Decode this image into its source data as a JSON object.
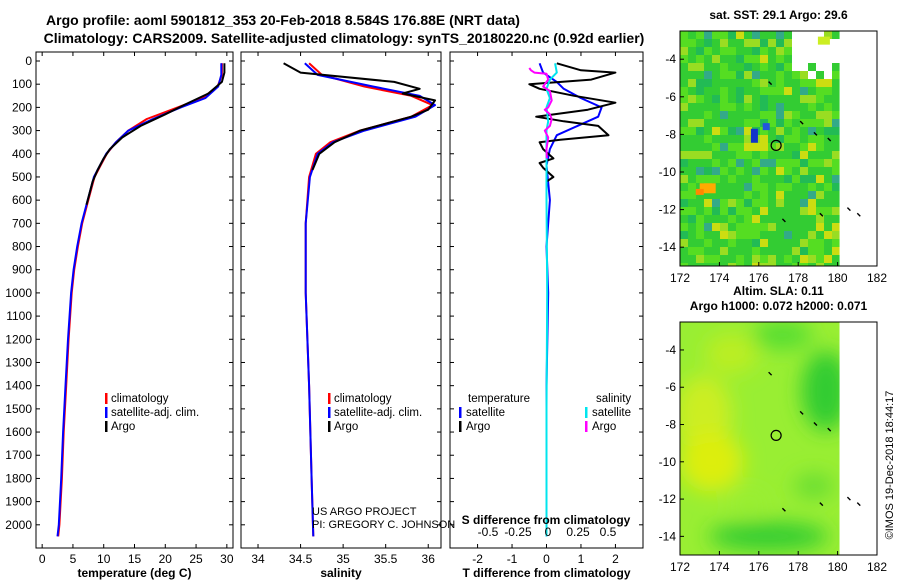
{
  "header": {
    "line1": "Argo profile: aoml 5901812_353 20-Feb-2018 8.584S 176.88E (NRT data)",
    "line2": "Climatology: CARS2009. Satellite-adjusted climatology: synTS_20180220.nc (0.92d earlier)"
  },
  "credit": {
    "line1": "US ARGO PROJECT",
    "line2": "PI: GREGORY C. JOHNSON"
  },
  "stamp": "©IMOS 19-Dec-2018 18:44:17",
  "colors": {
    "climatology": "#ff0000",
    "satellite": "#0000ff",
    "argo": "#000000",
    "sal_satellite": "#00e5ee",
    "sal_argo": "#ff00ff"
  },
  "chart_data": [
    {
      "type": "line",
      "id": "temperature",
      "xlabel": "temperature (deg C)",
      "ylabel": "",
      "xlim": [
        -1,
        31
      ],
      "ylim": [
        2100,
        0
      ],
      "xticks": [
        0,
        5,
        10,
        15,
        20,
        25,
        30
      ],
      "yticks": [
        0,
        100,
        200,
        300,
        400,
        500,
        600,
        700,
        800,
        900,
        1000,
        1100,
        1200,
        1300,
        1400,
        1500,
        1600,
        1700,
        1800,
        1900,
        2000
      ],
      "legend": [
        "climatology",
        "satellite-adj. clim.",
        "Argo"
      ],
      "series": [
        {
          "name": "climatology",
          "color": "#ff0000",
          "points": [
            [
              29.2,
              10
            ],
            [
              29.2,
              60
            ],
            [
              28.5,
              110
            ],
            [
              26,
              160
            ],
            [
              22,
              200
            ],
            [
              17,
              250
            ],
            [
              14,
              300
            ],
            [
              12,
              350
            ],
            [
              10.5,
              400
            ],
            [
              9.5,
              450
            ],
            [
              8.5,
              500
            ],
            [
              7.5,
              600
            ],
            [
              6.5,
              700
            ],
            [
              5.8,
              800
            ],
            [
              5.2,
              900
            ],
            [
              4.8,
              1000
            ],
            [
              4.3,
              1200
            ],
            [
              3.9,
              1400
            ],
            [
              3.5,
              1600
            ],
            [
              3.2,
              1800
            ],
            [
              2.8,
              2000
            ],
            [
              2.6,
              2050
            ]
          ]
        },
        {
          "name": "satellite-adj. clim.",
          "color": "#0000ff",
          "points": [
            [
              29.1,
              10
            ],
            [
              29.1,
              60
            ],
            [
              28.6,
              110
            ],
            [
              26.5,
              160
            ],
            [
              22.5,
              200
            ],
            [
              18,
              250
            ],
            [
              14,
              300
            ],
            [
              12,
              350
            ],
            [
              10.4,
              400
            ],
            [
              9.4,
              450
            ],
            [
              8.4,
              500
            ],
            [
              7.4,
              600
            ],
            [
              6.4,
              700
            ],
            [
              5.7,
              800
            ],
            [
              5.1,
              900
            ],
            [
              4.7,
              1000
            ],
            [
              4.2,
              1200
            ],
            [
              3.8,
              1400
            ],
            [
              3.4,
              1600
            ],
            [
              3.1,
              1800
            ],
            [
              2.7,
              2000
            ],
            [
              2.5,
              2050
            ]
          ]
        },
        {
          "name": "Argo",
          "color": "#000000",
          "points": [
            [
              29.6,
              10
            ],
            [
              29.6,
              50
            ],
            [
              29.2,
              90
            ],
            [
              27,
              140
            ],
            [
              23,
              190
            ],
            [
              20,
              230
            ],
            [
              16,
              280
            ],
            [
              13,
              330
            ],
            [
              11,
              380
            ],
            [
              10,
              420
            ],
            [
              9,
              470
            ],
            [
              8.2,
              520
            ],
            [
              7.2,
              620
            ]
          ]
        }
      ]
    },
    {
      "type": "line",
      "id": "salinity",
      "xlabel": "salinity",
      "ylabel": "",
      "xlim": [
        33.8,
        36.15
      ],
      "ylim": [
        2100,
        0
      ],
      "xticks": [
        34,
        34.5,
        35,
        35.5,
        36
      ],
      "xticklabels": [
        "34",
        "34.5",
        "35",
        "35.5",
        "36"
      ],
      "legend": [
        "climatology",
        "satellite-adj. clim.",
        "Argo"
      ],
      "series": [
        {
          "name": "climatology",
          "color": "#ff0000",
          "points": [
            [
              34.6,
              10
            ],
            [
              34.75,
              60
            ],
            [
              35.25,
              110
            ],
            [
              35.8,
              150
            ],
            [
              36.05,
              190
            ],
            [
              35.8,
              240
            ],
            [
              35.2,
              300
            ],
            [
              34.85,
              350
            ],
            [
              34.68,
              400
            ],
            [
              34.6,
              500
            ],
            [
              34.56,
              700
            ],
            [
              34.56,
              1000
            ],
            [
              34.6,
              1400
            ],
            [
              34.63,
              1800
            ],
            [
              34.65,
              2050
            ]
          ]
        },
        {
          "name": "satellite-adj. clim.",
          "color": "#0000ff",
          "points": [
            [
              34.55,
              10
            ],
            [
              34.7,
              60
            ],
            [
              35.35,
              110
            ],
            [
              35.9,
              150
            ],
            [
              36.08,
              190
            ],
            [
              35.85,
              240
            ],
            [
              35.25,
              300
            ],
            [
              34.88,
              350
            ],
            [
              34.7,
              400
            ],
            [
              34.61,
              500
            ],
            [
              34.56,
              700
            ],
            [
              34.56,
              1000
            ],
            [
              34.6,
              1400
            ],
            [
              34.63,
              1800
            ],
            [
              34.65,
              2050
            ]
          ]
        },
        {
          "name": "Argo",
          "color": "#000000",
          "points": [
            [
              34.3,
              10
            ],
            [
              34.5,
              50
            ],
            [
              35.6,
              90
            ],
            [
              35.9,
              120
            ],
            [
              35.7,
              140
            ],
            [
              36.08,
              170
            ],
            [
              36.0,
              210
            ],
            [
              35.8,
              240
            ],
            [
              35.2,
              300
            ],
            [
              34.9,
              350
            ],
            [
              34.72,
              400
            ],
            [
              34.64,
              470
            ]
          ]
        }
      ]
    },
    {
      "type": "line",
      "id": "differences",
      "xlabel": "T difference from climatology",
      "top_label": "S difference from climatology",
      "xlim": [
        -2.8,
        2.8
      ],
      "ylim": [
        2100,
        0
      ],
      "xticks": [
        -2,
        -1,
        0,
        1,
        2
      ],
      "sticks": [
        -0.5,
        -0.25,
        0,
        0.25,
        0.5
      ],
      "sticklabels": [
        "-0.5",
        "-0.25",
        "0",
        "0.25",
        "0.5"
      ],
      "legend_left_title": "temperature",
      "legend_right_title": "salinity",
      "legend_left": [
        "satellite",
        "Argo"
      ],
      "legend_right": [
        "satellite",
        "Argo"
      ],
      "series": [
        {
          "name": "T satellite",
          "color": "#0000ff",
          "points": [
            [
              -0.2,
              10
            ],
            [
              -0.1,
              50
            ],
            [
              0.3,
              90
            ],
            [
              0.5,
              120
            ],
            [
              1,
              160
            ],
            [
              1.6,
              200
            ],
            [
              1.5,
              240
            ],
            [
              0.9,
              280
            ],
            [
              0.3,
              320
            ],
            [
              0.1,
              380
            ],
            [
              0,
              450
            ],
            [
              0.1,
              600
            ],
            [
              0,
              800
            ],
            [
              0.05,
              1000
            ],
            [
              0,
              1400
            ],
            [
              0,
              2050
            ]
          ]
        },
        {
          "name": "T Argo",
          "color": "#000000",
          "points": [
            [
              0.3,
              10
            ],
            [
              1,
              40
            ],
            [
              2,
              50
            ],
            [
              1.3,
              80
            ],
            [
              -0.5,
              100
            ],
            [
              -0.2,
              120
            ],
            [
              0.8,
              150
            ],
            [
              2,
              180
            ],
            [
              1.2,
              210
            ],
            [
              -0.3,
              240
            ],
            [
              0.5,
              260
            ],
            [
              1.5,
              280
            ],
            [
              1.8,
              320
            ],
            [
              0.4,
              340
            ],
            [
              -0.2,
              350
            ],
            [
              -0.1,
              380
            ],
            [
              0.2,
              420
            ],
            [
              -0.2,
              440
            ],
            [
              -0.1,
              460
            ],
            [
              0.2,
              500
            ],
            [
              0,
              520
            ]
          ]
        },
        {
          "name": "S satellite",
          "color": "#00e5ee",
          "points": [
            [
              0.25,
              10
            ],
            [
              0.3,
              50
            ],
            [
              0.1,
              80
            ],
            [
              0,
              120
            ],
            [
              0.1,
              160
            ],
            [
              0,
              200
            ],
            [
              0.05,
              260
            ],
            [
              0,
              300
            ],
            [
              0,
              600
            ],
            [
              0.02,
              1000
            ],
            [
              0,
              1500
            ],
            [
              0,
              2050
            ]
          ]
        },
        {
          "name": "S Argo",
          "color": "#ff00ff",
          "points": [
            [
              -0.5,
              30
            ],
            [
              -0.45,
              40
            ],
            [
              -0.35,
              50
            ],
            [
              0,
              55
            ],
            [
              0.05,
              80
            ],
            [
              -0.1,
              110
            ],
            [
              0.1,
              130
            ],
            [
              0.15,
              170
            ],
            [
              0.05,
              200
            ],
            [
              -0.05,
              210
            ],
            [
              0.1,
              230
            ],
            [
              0.15,
              250
            ],
            [
              0.1,
              280
            ],
            [
              -0.05,
              300
            ],
            [
              0.05,
              330
            ],
            [
              0,
              380
            ],
            [
              0.01,
              420
            ]
          ]
        }
      ]
    },
    {
      "type": "heatmap",
      "id": "sst_map",
      "title": "sat. SST: 29.1  Argo: 29.6",
      "xlim": [
        172,
        182
      ],
      "ylim": [
        -15,
        -2.5
      ],
      "xticks": [
        172,
        174,
        176,
        178,
        180,
        182
      ],
      "yticks": [
        -4,
        -6,
        -8,
        -10,
        -12,
        -14
      ],
      "argo_position": [
        176.88,
        -8.584
      ]
    },
    {
      "type": "heatmap",
      "id": "sla_map",
      "title": "Altim. SLA: 0.11",
      "subtitle": "Argo h1000: 0.072 h2000: 0.071",
      "xlim": [
        172,
        182
      ],
      "ylim": [
        -15,
        -2.5
      ],
      "xticks": [
        172,
        174,
        176,
        178,
        180,
        182
      ],
      "yticks": [
        -4,
        -6,
        -8,
        -10,
        -12,
        -14
      ],
      "argo_position": [
        176.88,
        -8.584
      ]
    }
  ]
}
